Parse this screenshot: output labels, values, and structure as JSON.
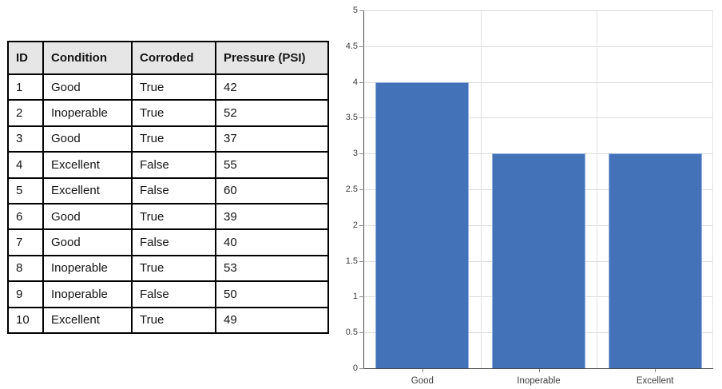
{
  "page": {
    "background": "#ffffff"
  },
  "table": {
    "headers": [
      "ID",
      "Condition",
      "Corroded",
      "Pressure (PSI)"
    ],
    "rows": [
      [
        "1",
        "Good",
        "True",
        "42"
      ],
      [
        "2",
        "Inoperable",
        "True",
        "52"
      ],
      [
        "3",
        "Good",
        "True",
        "37"
      ],
      [
        "4",
        "Excellent",
        "False",
        "55"
      ],
      [
        "5",
        "Excellent",
        "False",
        "60"
      ],
      [
        "6",
        "Good",
        "True",
        "39"
      ],
      [
        "7",
        "Good",
        "False",
        "40"
      ],
      [
        "8",
        "Inoperable",
        "True",
        "53"
      ],
      [
        "9",
        "Inoperable",
        "False",
        "50"
      ],
      [
        "10",
        "Excellent",
        "True",
        "49"
      ]
    ],
    "header_bg": "#e7e6e6",
    "border_color": "#000000"
  },
  "chart_data": {
    "type": "bar",
    "title": "",
    "xlabel": "",
    "ylabel": "",
    "categories": [
      "Good",
      "Inoperable",
      "Excellent"
    ],
    "values": [
      4,
      3,
      3
    ],
    "ylim": [
      0,
      5
    ],
    "ytick_step": 0.5,
    "ytick_labels": [
      "0",
      "0.5",
      "1",
      "1.5",
      "2",
      "2.5",
      "3",
      "3.5",
      "4",
      "4.5",
      "5"
    ],
    "grid": "horizontal at every 0.5; vertical at category boundaries and right edge",
    "legend": "none",
    "bar_color": "#4472b9",
    "bar_border_color": "#93afdb",
    "gridline_color": "#dcdcdc",
    "axis_color": "#4a4a4a",
    "tick_label_color": "#3d3d3d"
  }
}
